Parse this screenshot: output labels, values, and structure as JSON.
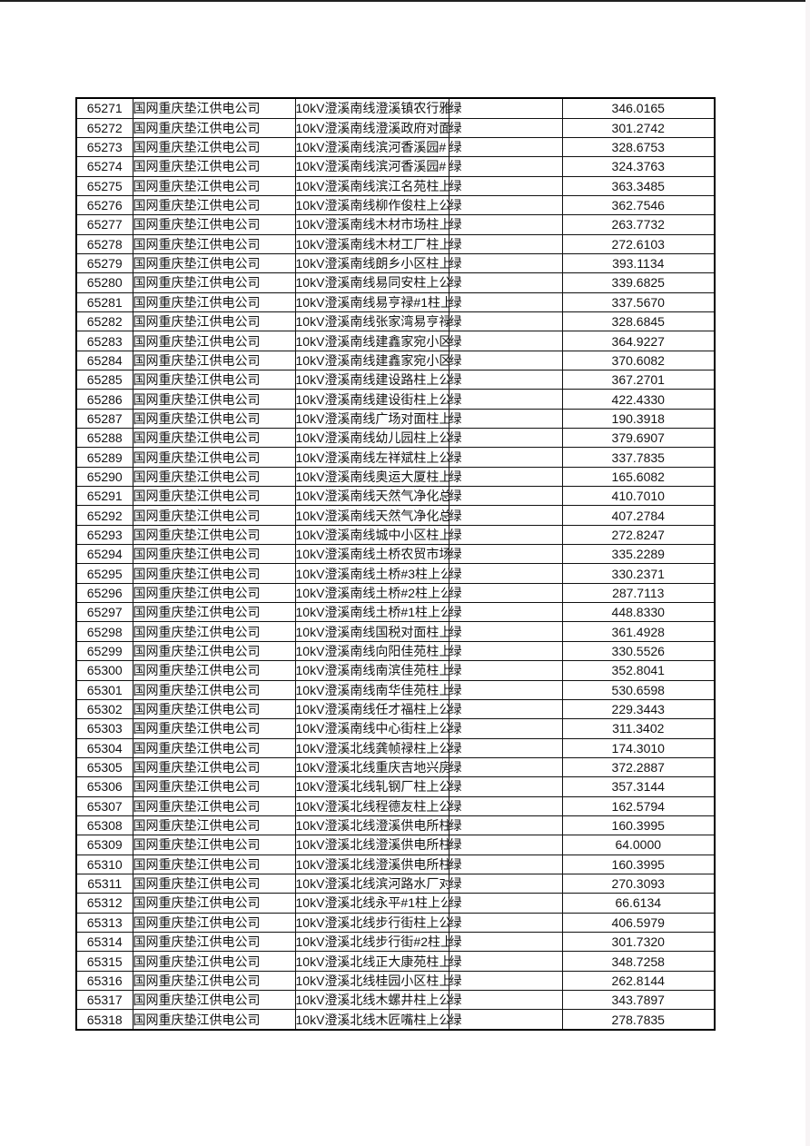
{
  "page": {
    "background_color": "#ffffff",
    "top_rule_color": "#1f1f1f",
    "border_color": "#000000"
  },
  "table": {
    "has_header_row": false,
    "columns": [
      {
        "key": "id",
        "cell_name": "row-id-cell",
        "align": "center"
      },
      {
        "key": "company",
        "cell_name": "company-cell",
        "align": "left"
      },
      {
        "key": "line",
        "cell_name": "line-name-cell",
        "align": "left"
      },
      {
        "key": "status",
        "cell_name": "status-cell",
        "align": "left"
      },
      {
        "key": "value",
        "cell_name": "value-cell",
        "align": "center"
      }
    ],
    "rows": [
      {
        "id": "65271",
        "company": "国网重庆垫江供电公司",
        "line": "10kV澄溪南线澄溪镇农行雅",
        "status": "绿",
        "value": "346.0165"
      },
      {
        "id": "65272",
        "company": "国网重庆垫江供电公司",
        "line": "10kV澄溪南线澄溪政府对面",
        "status": "绿",
        "value": "301.2742"
      },
      {
        "id": "65273",
        "company": "国网重庆垫江供电公司",
        "line": "10kV澄溪南线滨河香溪园#",
        "status": "绿",
        "value": "328.6753"
      },
      {
        "id": "65274",
        "company": "国网重庆垫江供电公司",
        "line": "10kV澄溪南线滨河香溪园#",
        "status": "绿",
        "value": "324.3763"
      },
      {
        "id": "65275",
        "company": "国网重庆垫江供电公司",
        "line": "10kV澄溪南线滨江名苑柱上",
        "status": "绿",
        "value": "363.3485"
      },
      {
        "id": "65276",
        "company": "国网重庆垫江供电公司",
        "line": "10kV澄溪南线柳作俊柱上公",
        "status": "绿",
        "value": "362.7546"
      },
      {
        "id": "65277",
        "company": "国网重庆垫江供电公司",
        "line": "10kV澄溪南线木材市场柱上",
        "status": "绿",
        "value": "263.7732"
      },
      {
        "id": "65278",
        "company": "国网重庆垫江供电公司",
        "line": "10kV澄溪南线木材工厂柱上",
        "status": "绿",
        "value": "272.6103"
      },
      {
        "id": "65279",
        "company": "国网重庆垫江供电公司",
        "line": "10kV澄溪南线朗乡小区柱上",
        "status": "绿",
        "value": "393.1134"
      },
      {
        "id": "65280",
        "company": "国网重庆垫江供电公司",
        "line": "10kV澄溪南线易同安柱上公",
        "status": "绿",
        "value": "339.6825"
      },
      {
        "id": "65281",
        "company": "国网重庆垫江供电公司",
        "line": "10kV澄溪南线易亨禄#1柱上",
        "status": "绿",
        "value": "337.5670"
      },
      {
        "id": "65282",
        "company": "国网重庆垫江供电公司",
        "line": "10kV澄溪南线张家湾易亨禄",
        "status": "绿",
        "value": "328.6845"
      },
      {
        "id": "65283",
        "company": "国网重庆垫江供电公司",
        "line": "10kV澄溪南线建鑫家宛小区",
        "status": "绿",
        "value": "364.9227"
      },
      {
        "id": "65284",
        "company": "国网重庆垫江供电公司",
        "line": "10kV澄溪南线建鑫家宛小区",
        "status": "绿",
        "value": "370.6082"
      },
      {
        "id": "65285",
        "company": "国网重庆垫江供电公司",
        "line": "10kV澄溪南线建设路柱上公",
        "status": "绿",
        "value": "367.2701"
      },
      {
        "id": "65286",
        "company": "国网重庆垫江供电公司",
        "line": "10kV澄溪南线建设街柱上公",
        "status": "绿",
        "value": "422.4330"
      },
      {
        "id": "65287",
        "company": "国网重庆垫江供电公司",
        "line": "10kV澄溪南线广场对面柱上",
        "status": "绿",
        "value": "190.3918"
      },
      {
        "id": "65288",
        "company": "国网重庆垫江供电公司",
        "line": "10kV澄溪南线幼儿园柱上公",
        "status": "绿",
        "value": "379.6907"
      },
      {
        "id": "65289",
        "company": "国网重庆垫江供电公司",
        "line": "10kV澄溪南线左祥斌柱上公",
        "status": "绿",
        "value": "337.7835"
      },
      {
        "id": "65290",
        "company": "国网重庆垫江供电公司",
        "line": "10kV澄溪南线奥运大厦柱上",
        "status": "绿",
        "value": "165.6082"
      },
      {
        "id": "65291",
        "company": "国网重庆垫江供电公司",
        "line": "10kV澄溪南线天然气净化总",
        "status": "绿",
        "value": "410.7010"
      },
      {
        "id": "65292",
        "company": "国网重庆垫江供电公司",
        "line": "10kV澄溪南线天然气净化总",
        "status": "绿",
        "value": "407.2784"
      },
      {
        "id": "65293",
        "company": "国网重庆垫江供电公司",
        "line": "10kV澄溪南线城中小区柱上",
        "status": "绿",
        "value": "272.8247"
      },
      {
        "id": "65294",
        "company": "国网重庆垫江供电公司",
        "line": "10kV澄溪南线土桥农贸市场",
        "status": "绿",
        "value": "335.2289"
      },
      {
        "id": "65295",
        "company": "国网重庆垫江供电公司",
        "line": "10kV澄溪南线土桥#3柱上公",
        "status": "绿",
        "value": "330.2371"
      },
      {
        "id": "65296",
        "company": "国网重庆垫江供电公司",
        "line": "10kV澄溪南线土桥#2柱上公",
        "status": "绿",
        "value": "287.7113"
      },
      {
        "id": "65297",
        "company": "国网重庆垫江供电公司",
        "line": "10kV澄溪南线土桥#1柱上公",
        "status": "绿",
        "value": "448.8330"
      },
      {
        "id": "65298",
        "company": "国网重庆垫江供电公司",
        "line": "10kV澄溪南线国税对面柱上",
        "status": "绿",
        "value": "361.4928"
      },
      {
        "id": "65299",
        "company": "国网重庆垫江供电公司",
        "line": "10kV澄溪南线向阳佳苑柱上",
        "status": "绿",
        "value": "330.5526"
      },
      {
        "id": "65300",
        "company": "国网重庆垫江供电公司",
        "line": "10kV澄溪南线南滨佳苑柱上",
        "status": "绿",
        "value": "352.8041"
      },
      {
        "id": "65301",
        "company": "国网重庆垫江供电公司",
        "line": "10kV澄溪南线南华佳苑柱上",
        "status": "绿",
        "value": "530.6598"
      },
      {
        "id": "65302",
        "company": "国网重庆垫江供电公司",
        "line": "10kV澄溪南线任才福柱上公",
        "status": "绿",
        "value": "229.3443"
      },
      {
        "id": "65303",
        "company": "国网重庆垫江供电公司",
        "line": "10kV澄溪南线中心街柱上公",
        "status": "绿",
        "value": "311.3402"
      },
      {
        "id": "65304",
        "company": "国网重庆垫江供电公司",
        "line": "10kV澄溪北线龚帧禄柱上公",
        "status": "绿",
        "value": "174.3010"
      },
      {
        "id": "65305",
        "company": "国网重庆垫江供电公司",
        "line": "10kV澄溪北线重庆吉地兴房",
        "status": "绿",
        "value": "372.2887"
      },
      {
        "id": "65306",
        "company": "国网重庆垫江供电公司",
        "line": "10kV澄溪北线轧钢厂柱上公",
        "status": "绿",
        "value": "357.3144"
      },
      {
        "id": "65307",
        "company": "国网重庆垫江供电公司",
        "line": "10kV澄溪北线程德友柱上公",
        "status": "绿",
        "value": "162.5794"
      },
      {
        "id": "65308",
        "company": "国网重庆垫江供电公司",
        "line": "10kV澄溪北线澄溪供电所柱",
        "status": "绿",
        "value": "160.3995"
      },
      {
        "id": "65309",
        "company": "国网重庆垫江供电公司",
        "line": "10kV澄溪北线澄溪供电所柱",
        "status": "绿",
        "value": "64.0000"
      },
      {
        "id": "65310",
        "company": "国网重庆垫江供电公司",
        "line": "10kV澄溪北线澄溪供电所柱",
        "status": "绿",
        "value": "160.3995"
      },
      {
        "id": "65311",
        "company": "国网重庆垫江供电公司",
        "line": "10kV澄溪北线滨河路水厂对",
        "status": "绿",
        "value": "270.3093"
      },
      {
        "id": "65312",
        "company": "国网重庆垫江供电公司",
        "line": "10kV澄溪北线永平#1柱上公",
        "status": "绿",
        "value": "66.6134"
      },
      {
        "id": "65313",
        "company": "国网重庆垫江供电公司",
        "line": "10kV澄溪北线步行街柱上公",
        "status": "绿",
        "value": "406.5979"
      },
      {
        "id": "65314",
        "company": "国网重庆垫江供电公司",
        "line": "10kV澄溪北线步行街#2柱上",
        "status": "绿",
        "value": "301.7320"
      },
      {
        "id": "65315",
        "company": "国网重庆垫江供电公司",
        "line": "10kV澄溪北线正大康苑柱上",
        "status": "绿",
        "value": "348.7258"
      },
      {
        "id": "65316",
        "company": "国网重庆垫江供电公司",
        "line": "10kV澄溪北线桂园小区柱上",
        "status": "绿",
        "value": "262.8144"
      },
      {
        "id": "65317",
        "company": "国网重庆垫江供电公司",
        "line": "10kV澄溪北线木螺井柱上公",
        "status": "绿",
        "value": "343.7897"
      },
      {
        "id": "65318",
        "company": "国网重庆垫江供电公司",
        "line": "10kV澄溪北线木匠嘴柱上公",
        "status": "绿",
        "value": "278.7835"
      }
    ]
  }
}
